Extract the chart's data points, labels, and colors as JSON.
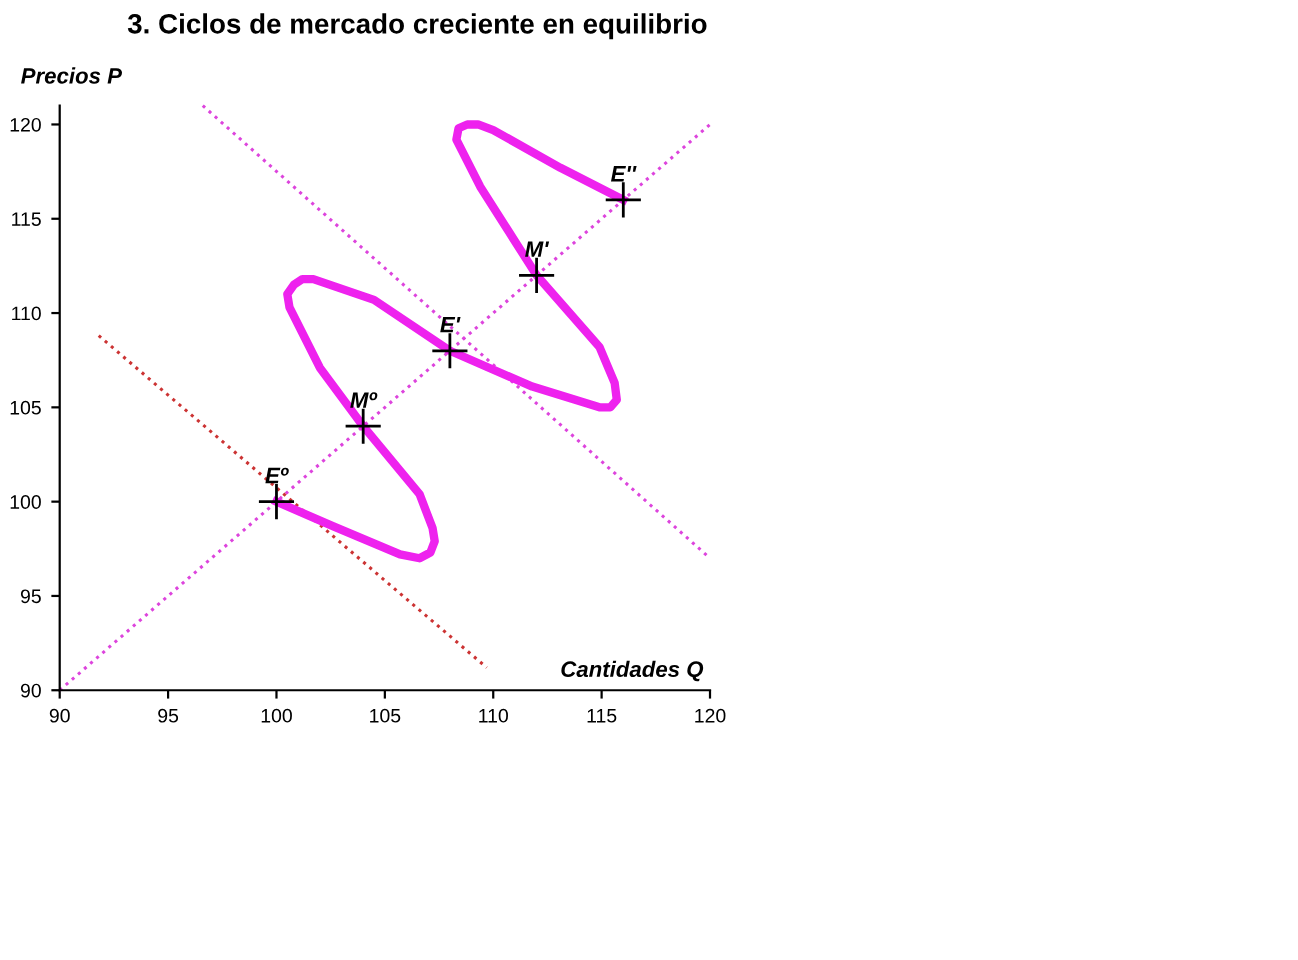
{
  "chart_data": {
    "type": "line",
    "title": "3. Ciclos de mercado creciente en equilibrio",
    "xlabel": "Cantidades Q",
    "ylabel": "Precios P",
    "xlim": [
      90,
      120
    ],
    "ylim": [
      90,
      121
    ],
    "xticks": [
      90,
      95,
      100,
      105,
      110,
      115,
      120
    ],
    "yticks": [
      90,
      95,
      100,
      105,
      110,
      115,
      120
    ],
    "grid": false,
    "legend": false,
    "series": [
      {
        "line_style": "dotted",
        "color": "#dd44dd",
        "x": [
          90,
          120
        ],
        "values": [
          90,
          120
        ]
      },
      {
        "line_style": "dotted",
        "color": "#dd44dd",
        "x": [
          96.6,
          120
        ],
        "values": [
          121,
          97
        ]
      },
      {
        "line_style": "dotted",
        "color": "#cc3333",
        "x": [
          91.8,
          109.7
        ],
        "values": [
          108.8,
          91.2
        ]
      },
      {
        "line_style": "solid",
        "color": "#ee22ee",
        "x": [
          100,
          102.6,
          105.7,
          106.6,
          107.1,
          107.3,
          107.2,
          106.6,
          104,
          102.0,
          100.6,
          100.5,
          100.8,
          101.2,
          101.7,
          104.5,
          108,
          111.8,
          114.9,
          115.4,
          115.7,
          115.6,
          114.9,
          112,
          109.4,
          108.3,
          108.4,
          108.8,
          109.3,
          110.0,
          113.1,
          116
        ],
        "values": [
          100,
          98.7,
          97.2,
          97.0,
          97.3,
          97.9,
          98.6,
          100.4,
          104,
          107.1,
          110.3,
          111.0,
          111.5,
          111.8,
          111.8,
          110.7,
          108,
          106.1,
          105.0,
          105.0,
          105.4,
          106.3,
          108.2,
          112,
          116.7,
          119.2,
          119.8,
          120.0,
          120.0,
          119.7,
          117.7,
          116
        ]
      },
      {
        "type": "scatter",
        "marker": "cross",
        "color": "#000000",
        "x": [
          100,
          104,
          108,
          112,
          116
        ],
        "values": [
          100,
          104,
          108,
          112,
          116
        ]
      }
    ],
    "annotations": [
      {
        "text": "Eº",
        "x": 100,
        "y": 100
      },
      {
        "text": "Mº",
        "x": 104,
        "y": 104
      },
      {
        "text": "E'",
        "x": 108,
        "y": 108
      },
      {
        "text": "M'",
        "x": 112,
        "y": 112
      },
      {
        "text": "E''",
        "x": 116,
        "y": 116
      }
    ]
  }
}
